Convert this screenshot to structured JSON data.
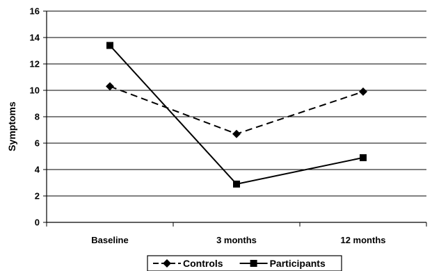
{
  "chart_data": {
    "type": "line",
    "title": "",
    "xlabel": "",
    "ylabel": "Symptoms",
    "categories": [
      "Baseline",
      "3 months",
      "12 months"
    ],
    "ylim": [
      0,
      16
    ],
    "yticks": [
      "0",
      "2",
      "4",
      "6",
      "8",
      "10",
      "12",
      "14",
      "16"
    ],
    "grid": "horizontal",
    "legend_position": "bottom",
    "series": [
      {
        "name": "Controls",
        "values": [
          10.3,
          6.7,
          9.9
        ],
        "marker": "diamond",
        "line_style": "dashed",
        "color": "#000000"
      },
      {
        "name": "Participants",
        "values": [
          13.4,
          2.9,
          4.9
        ],
        "marker": "square",
        "line_style": "solid",
        "color": "#000000"
      }
    ]
  }
}
